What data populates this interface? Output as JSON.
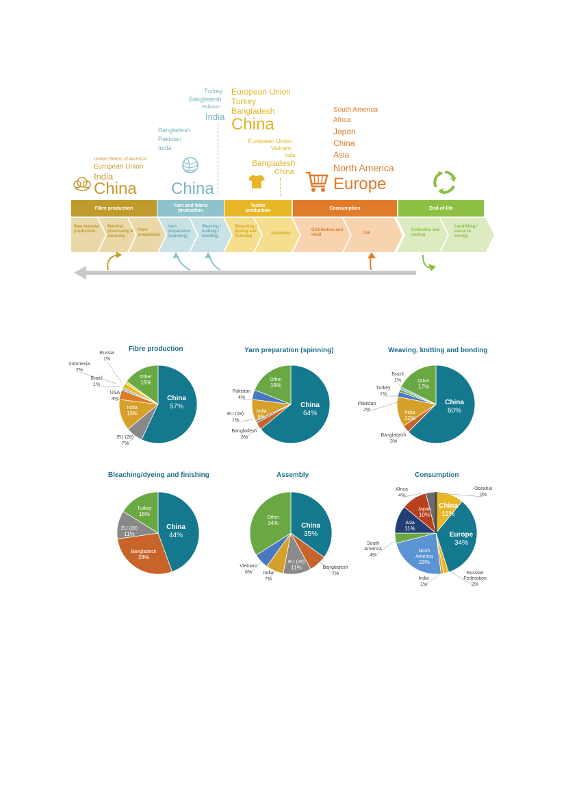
{
  "colors": {
    "fibre": "#c09a2b",
    "yarn": "#8cc3cd",
    "textile": "#e8b728",
    "consumption": "#e07b2a",
    "endoflife": "#8dbf43",
    "china": "#14788f",
    "other": "#6aa843",
    "india": "#d6a12b",
    "gray": "#bdbdbd"
  },
  "flow": {
    "stages": [
      {
        "label": "Fibre production",
        "icon": "cotton-icon"
      },
      {
        "label": "Yarn and fabric production",
        "icon": "yarn-ball-icon"
      },
      {
        "label": "Textile production",
        "icon": "tshirt-icon"
      },
      {
        "label": "Consumption",
        "icon": "shopping-cart-icon"
      },
      {
        "label": "End-of-life",
        "icon": "recycle-icon"
      }
    ],
    "steps": [
      "Raw material production",
      "Material processing & sourcing",
      "Fibre preparation",
      "Yarn preparation (spinning)",
      "Weaving / knitting / bonding",
      "Bleaching / dyeing and finishing",
      "Assembly",
      "Distribution and retail",
      "Use",
      "Collection and sorting",
      "Landfilling / waste to energy"
    ],
    "fibre_countries": [
      "United States of America",
      "European Union",
      "India",
      "China"
    ],
    "yarn_countries": [
      "Bangladesh",
      "Pakistan",
      "India",
      "China"
    ],
    "weaving_countries": [
      "Turkey",
      "Bangladesh",
      "Pakistan",
      "India"
    ],
    "textile_countries": [
      "European Union",
      "Turkey",
      "Bangladesh",
      "China"
    ],
    "assembly_countries": [
      "European Union",
      "Vietnam",
      "India",
      "Bangladesh",
      "China"
    ],
    "consumption_countries": [
      "South America",
      "Africa",
      "Japan",
      "China",
      "Asia",
      "North America",
      "Europe"
    ]
  },
  "chart_data": [
    {
      "type": "pie",
      "title": "Fibre production",
      "slices": [
        {
          "name": "China",
          "value": 57
        },
        {
          "name": "EU (28)",
          "value": 7
        },
        {
          "name": "India",
          "value": 13
        },
        {
          "name": "USA",
          "value": 4
        },
        {
          "name": "Brazil",
          "value": 1
        },
        {
          "name": "Indonesia",
          "value": 2
        },
        {
          "name": "Russia",
          "value": 1
        },
        {
          "name": "Other",
          "value": 15
        }
      ]
    },
    {
      "type": "pie",
      "title": "Yarn preparation (spinning)",
      "slices": [
        {
          "name": "China",
          "value": 64
        },
        {
          "name": "Bangladesh",
          "value": 3
        },
        {
          "name": "EU (28)",
          "value": 1
        },
        {
          "name": "India",
          "value": 9
        },
        {
          "name": "Pakistan",
          "value": 4
        },
        {
          "name": "Other",
          "value": 19
        }
      ]
    },
    {
      "type": "pie",
      "title": "Weaving, knitting and bonding",
      "slices": [
        {
          "name": "China",
          "value": 60
        },
        {
          "name": "Bangladesh",
          "value": 3
        },
        {
          "name": "India",
          "value": 12
        },
        {
          "name": "Pakistan",
          "value": 2
        },
        {
          "name": "Turkey",
          "value": 1
        },
        {
          "name": "Brazil",
          "value": 1
        },
        {
          "name": "Other",
          "value": 17
        }
      ]
    },
    {
      "type": "pie",
      "title": "Bleaching/dyeing and finishing",
      "slices": [
        {
          "name": "China",
          "value": 44
        },
        {
          "name": "Bangladesh",
          "value": 28
        },
        {
          "name": "EU (28)",
          "value": 11
        },
        {
          "name": "Turkey",
          "value": 16
        }
      ]
    },
    {
      "type": "pie",
      "title": "Assembly",
      "slices": [
        {
          "name": "China",
          "value": 35
        },
        {
          "name": "Bangladesh",
          "value": 7
        },
        {
          "name": "EU (28)",
          "value": 11
        },
        {
          "name": "India",
          "value": 7
        },
        {
          "name": "Vietnam",
          "value": 6
        },
        {
          "name": "Other",
          "value": 34
        }
      ]
    },
    {
      "type": "pie",
      "title": "Consumption",
      "slices": [
        {
          "name": "China",
          "value": 11
        },
        {
          "name": "Europe",
          "value": 34
        },
        {
          "name": "Russian Federation",
          "value": 2
        },
        {
          "name": "India",
          "value": 1
        },
        {
          "name": "North America",
          "value": 23
        },
        {
          "name": "South America",
          "value": 4
        },
        {
          "name": "Asia",
          "value": 11
        },
        {
          "name": "Japan",
          "value": 10
        },
        {
          "name": "Africa",
          "value": 4
        },
        {
          "name": "Oceania",
          "value": 0
        }
      ]
    }
  ]
}
